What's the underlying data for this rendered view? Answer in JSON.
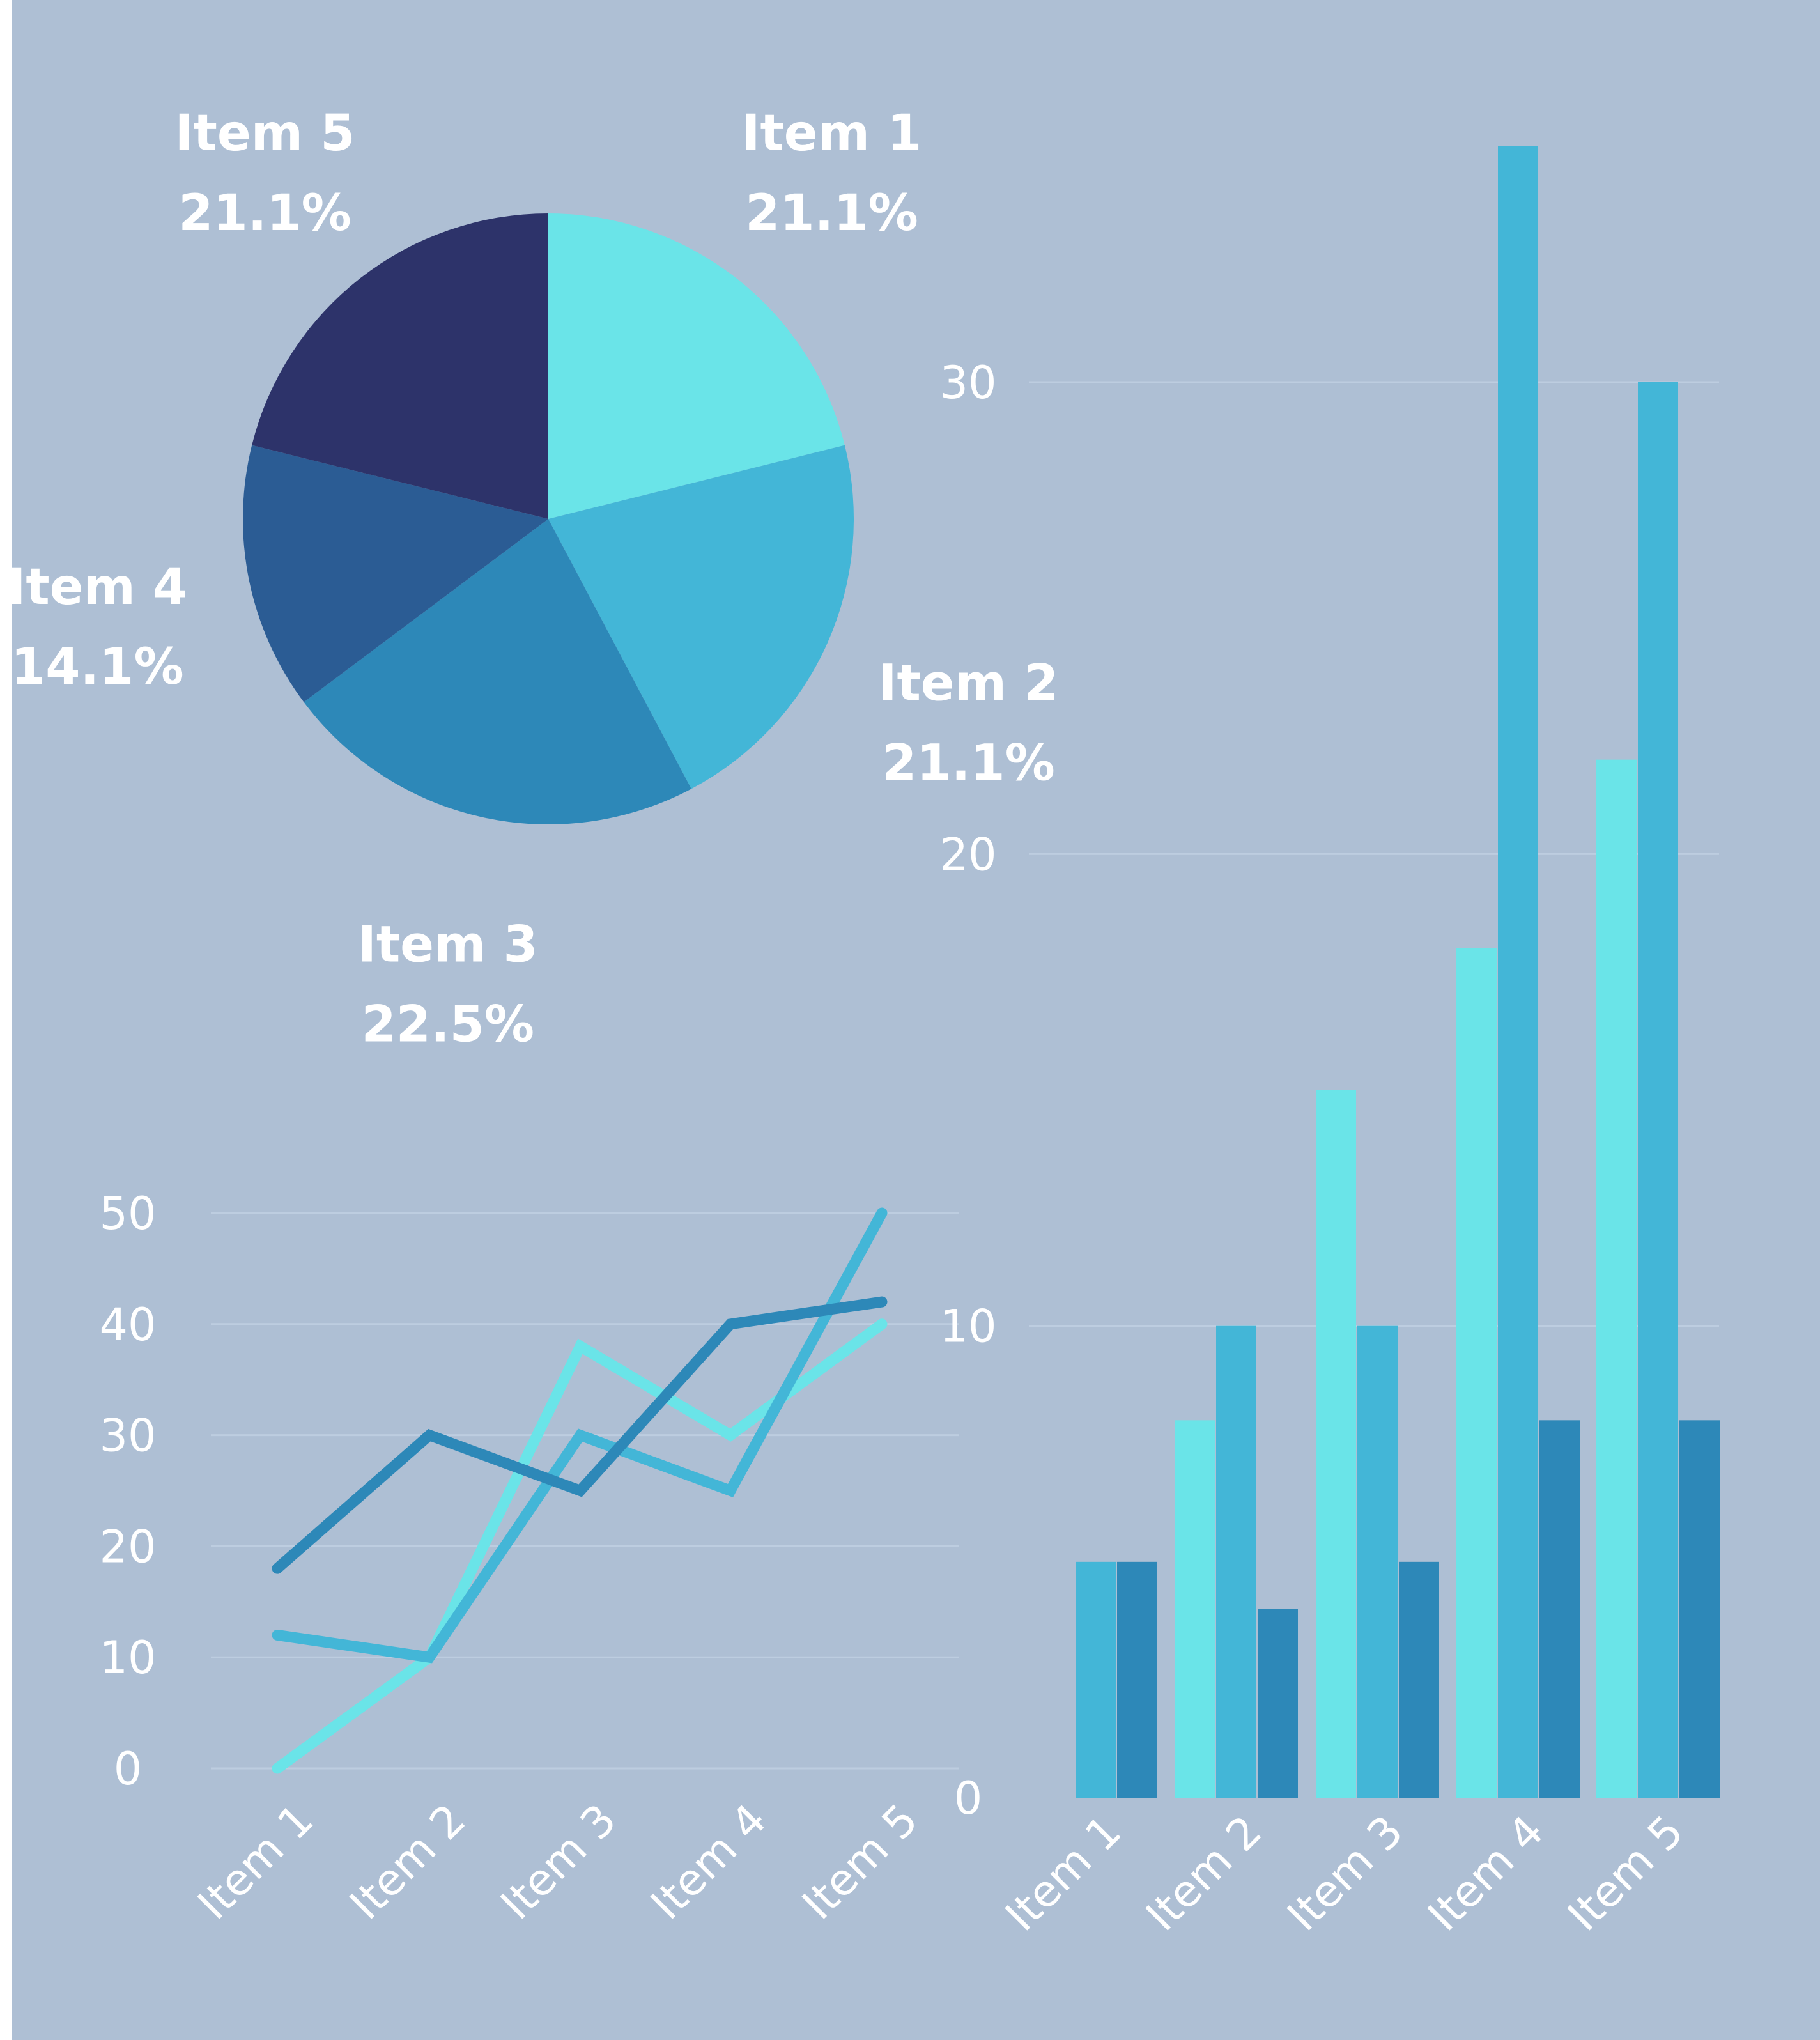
{
  "colors": {
    "background": "#aebfd4",
    "series": [
      "#6ae4e8",
      "#43b6d7",
      "#2d88b8",
      "#2b5c94",
      "#2d336a"
    ],
    "grid": "#bdcde0",
    "text": "#ffffff"
  },
  "chart_data": [
    {
      "type": "pie",
      "slices": [
        {
          "label": "Item 1",
          "pct_label": "21.1%",
          "value": 21.1
        },
        {
          "label": "Item 2",
          "pct_label": "21.1%",
          "value": 21.1
        },
        {
          "label": "Item 3",
          "pct_label": "22.5%",
          "value": 22.5
        },
        {
          "label": "Item 4",
          "pct_label": "14.1%",
          "value": 14.1
        },
        {
          "label": "Item 5",
          "pct_label": "21.1%",
          "value": 21.1
        }
      ]
    },
    {
      "type": "line",
      "categories": [
        "Item 1",
        "Item 2",
        "Item 3",
        "Item 4",
        "Item 5"
      ],
      "yticks": [
        "0",
        "10",
        "20",
        "30",
        "40",
        "50"
      ],
      "ylim": [
        0,
        50
      ],
      "series": [
        {
          "values": [
            0,
            10,
            38,
            30,
            40
          ]
        },
        {
          "values": [
            12,
            10,
            30,
            25,
            50
          ]
        },
        {
          "values": [
            18,
            30,
            25,
            40,
            42
          ]
        }
      ]
    },
    {
      "type": "bar",
      "categories": [
        "Item 1",
        "Item 2",
        "Item 3",
        "Item 4",
        "Item 5"
      ],
      "yticks": [
        "0",
        "10",
        "20",
        "30"
      ],
      "ylim": [
        0,
        35
      ],
      "series": [
        {
          "values": [
            0,
            8,
            15,
            18,
            22
          ]
        },
        {
          "values": [
            5,
            10,
            10,
            35,
            30
          ]
        },
        {
          "values": [
            5,
            4,
            5,
            8,
            8
          ]
        }
      ]
    }
  ]
}
